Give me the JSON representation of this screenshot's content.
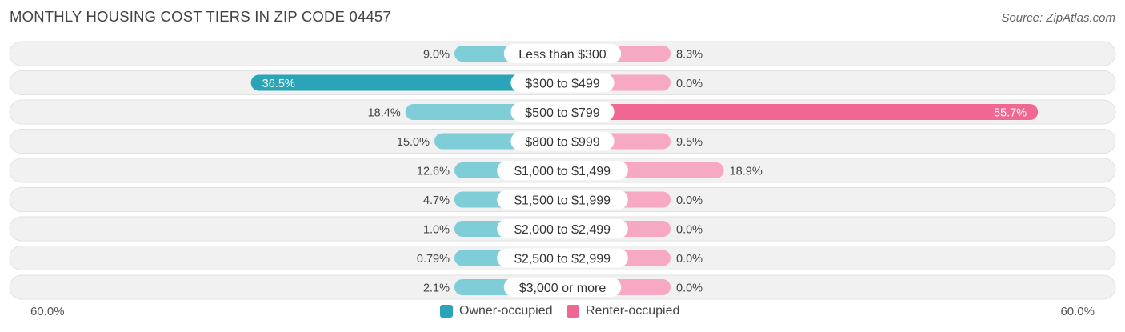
{
  "title": "MONTHLY HOUSING COST TIERS IN ZIP CODE 04457",
  "source": "Source: ZipAtlas.com",
  "colors": {
    "owner": "#2aa5b8",
    "owner_light": "#7ecdd7",
    "renter": "#f06792",
    "renter_light": "#f7a8c2",
    "track": "#f1f1f1"
  },
  "legend": {
    "owner_label": "Owner-occupied",
    "renter_label": "Renter-occupied"
  },
  "axis": {
    "left_label": "60.0%",
    "right_label": "60.0%"
  },
  "chart_data": {
    "type": "bar",
    "orientation": "diverging-horizontal",
    "title": "MONTHLY HOUSING COST TIERS IN ZIP CODE 04457",
    "xlim": [
      -60,
      60
    ],
    "categories": [
      "Less than $300",
      "$300 to $499",
      "$500 to $799",
      "$800 to $999",
      "$1,000 to $1,499",
      "$1,500 to $1,999",
      "$2,000 to $2,499",
      "$2,500 to $2,999",
      "$3,000 or more"
    ],
    "series": [
      {
        "name": "Owner-occupied",
        "values": [
          9.0,
          36.5,
          18.4,
          15.0,
          12.6,
          4.7,
          1.0,
          0.79,
          2.1
        ],
        "labels": [
          "9.0%",
          "36.5%",
          "18.4%",
          "15.0%",
          "12.6%",
          "4.7%",
          "1.0%",
          "0.79%",
          "2.1%"
        ]
      },
      {
        "name": "Renter-occupied",
        "values": [
          8.3,
          0.0,
          55.7,
          9.5,
          18.9,
          0.0,
          0.0,
          0.0,
          0.0
        ],
        "labels": [
          "8.3%",
          "0.0%",
          "55.7%",
          "9.5%",
          "18.9%",
          "0.0%",
          "0.0%",
          "0.0%",
          "0.0%"
        ]
      }
    ],
    "legend_position": "bottom-center"
  }
}
